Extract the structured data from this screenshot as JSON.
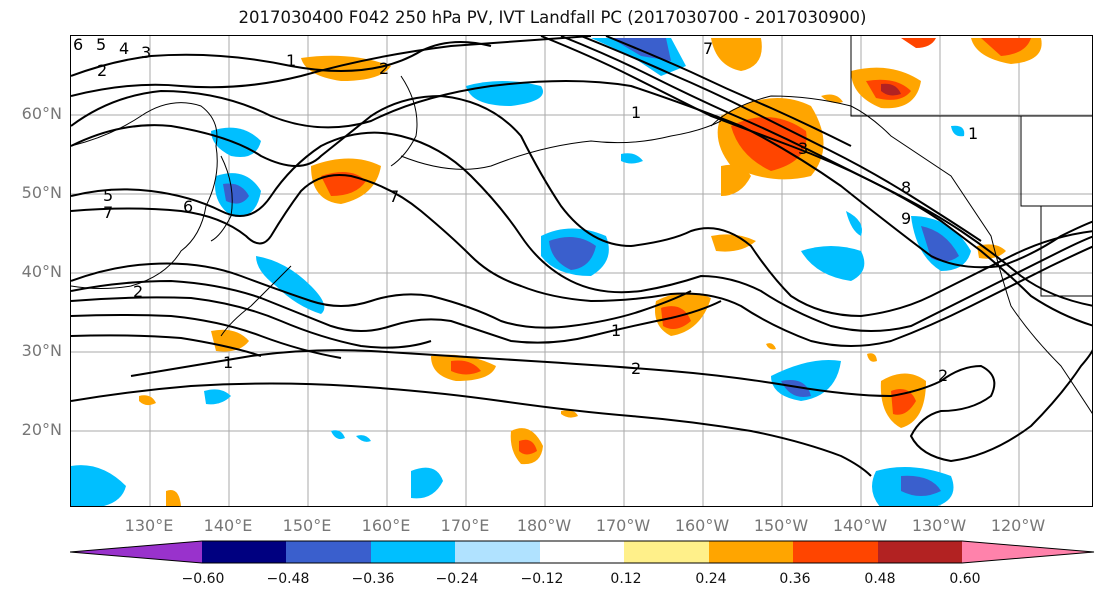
{
  "title": "2017030400 F042 250 hPa PV, IVT Landfall PC (2017030700 - 2017030900)",
  "latitude_labels": [
    "60°N",
    "50°N",
    "40°N",
    "30°N",
    "20°N"
  ],
  "longitude_labels": [
    "130°E",
    "140°E",
    "150°E",
    "160°E",
    "170°E",
    "180°W",
    "170°W",
    "160°W",
    "150°W",
    "140°W",
    "130°W",
    "120°W"
  ],
  "contour_labels": [
    "6",
    "5",
    "4",
    "3",
    "2",
    "1",
    "2",
    "5",
    "7",
    "6",
    "7",
    "1",
    "2",
    "1",
    "3",
    "8",
    "9",
    "1",
    "2",
    "7",
    "1",
    "2"
  ],
  "colorbar": {
    "colors": [
      "#9932cc",
      "#000080",
      "#3a5fcd",
      "#00bfff",
      "#b0e2ff",
      "#ffffff",
      "#fff08a",
      "#ffa500",
      "#ff4500",
      "#b22222",
      "#ff82ab"
    ],
    "tick_labels": [
      "−0.60",
      "−0.48",
      "−0.36",
      "−0.24",
      "−0.12",
      "0.12",
      "0.24",
      "0.36",
      "0.48",
      "0.60"
    ]
  }
}
